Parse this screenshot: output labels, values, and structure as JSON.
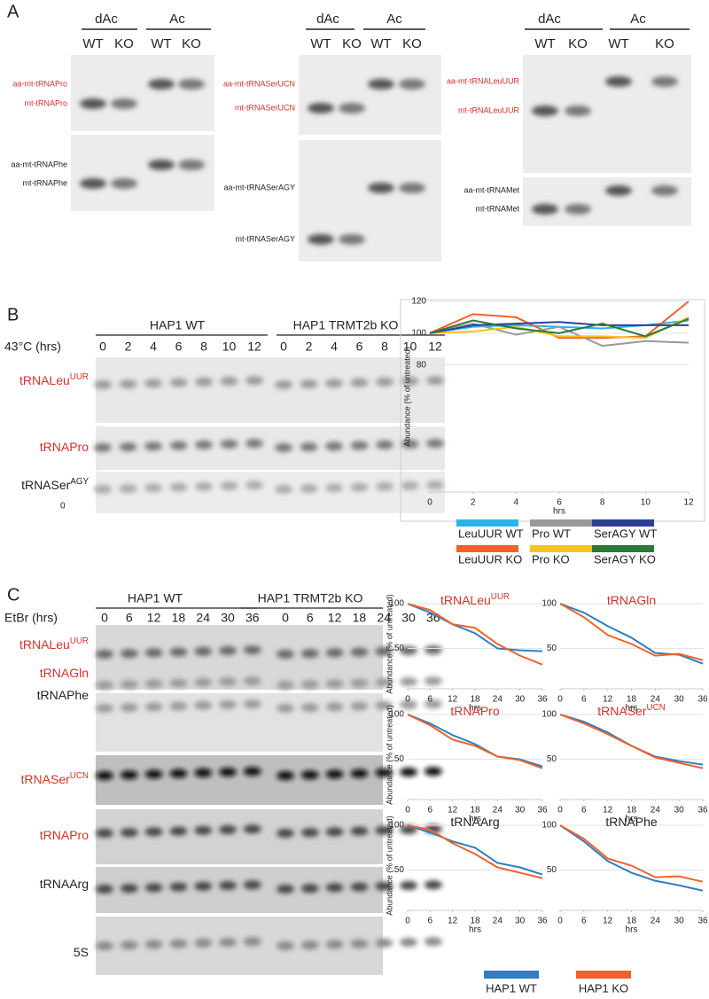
{
  "panel_a": {
    "label": "A",
    "blots": [
      {
        "groups": [
          "dAc",
          "Ac"
        ],
        "lanes": [
          "WT",
          "KO",
          "WT",
          "KO"
        ],
        "bands": [
          {
            "text": "aa-mt-tRNAPro",
            "color": "#d6312a"
          },
          {
            "text": "mt-tRNAPro",
            "color": "#d6312a"
          },
          {
            "text": "aa-mt-tRNAPhe",
            "color": "#222222"
          },
          {
            "text": "mt-tRNAPhe",
            "color": "#222222"
          }
        ]
      },
      {
        "groups": [
          "dAc",
          "Ac"
        ],
        "lanes": [
          "WT",
          "KO",
          "WT",
          "KO"
        ],
        "bands": [
          {
            "text": "aa-mt-tRNASerUCN",
            "color": "#d6312a"
          },
          {
            "text": "mt-tRNASerUCN",
            "color": "#d6312a"
          },
          {
            "text": "aa-mt-tRNASerAGY",
            "color": "#222222"
          },
          {
            "text": "mt-tRNASerAGY",
            "color": "#222222"
          }
        ]
      },
      {
        "groups": [
          "dAc",
          "Ac"
        ],
        "lanes": [
          "WT",
          "KO",
          "WT",
          "KO"
        ],
        "bands": [
          {
            "text": "aa-mt-tRNALeuUUR",
            "color": "#d6312a"
          },
          {
            "text": "mt-tRNALeuUUR",
            "color": "#d6312a"
          },
          {
            "text": "aa-mt-tRNAMet",
            "color": "#222222"
          },
          {
            "text": "mt-tRNAMet",
            "color": "#222222"
          }
        ]
      }
    ]
  },
  "panel_b": {
    "label": "B",
    "groups": [
      "HAP1 WT",
      "HAP1 TRMT2b KO"
    ],
    "time_title": "43°C (hrs)",
    "times": [
      0,
      2,
      4,
      6,
      8,
      10,
      12
    ],
    "note": "0",
    "rows": [
      {
        "text": "tRNALeu",
        "sup": "UUR",
        "color": "#d6312a"
      },
      {
        "text": "tRNAPro",
        "color": "#d6312a"
      },
      {
        "text": "tRNASer",
        "sup": "AGY",
        "color": "#222222"
      }
    ]
  },
  "panel_c": {
    "label": "C",
    "groups": [
      "HAP1 WT",
      "HAP1 TRMT2b KO"
    ],
    "time_title": "EtBr (hrs)",
    "times": [
      0,
      6,
      12,
      18,
      24,
      30,
      36
    ],
    "rows": [
      {
        "text": "tRNALeu",
        "sup": "UUR",
        "color": "#d6312a"
      },
      {
        "text": "tRNAGln",
        "color": "#d6312a"
      },
      {
        "text": "tRNAPhe",
        "color": "#222222"
      },
      {
        "text": "tRNASer",
        "sup": "UCN",
        "color": "#d6312a"
      },
      {
        "text": "tRNAPro",
        "color": "#d6312a"
      },
      {
        "text": "tRNAArg",
        "color": "#222222"
      },
      {
        "text": "5S",
        "color": "#222222"
      }
    ],
    "legend": [
      {
        "name": "HAP1 WT",
        "color": "#2f7fc1"
      },
      {
        "name": "HAP1 KO",
        "color": "#f0622a"
      }
    ]
  },
  "chart_data": [
    {
      "type": "line",
      "ylabel": "Abundance (% of untreated)",
      "xlabel": "hrs",
      "x": [
        0,
        2,
        4,
        6,
        8,
        10,
        12
      ],
      "xlim": [
        0,
        12
      ],
      "xticks": [
        0,
        2,
        4,
        6,
        8,
        10,
        12
      ],
      "ylim": [
        0,
        120
      ],
      "yticks": [
        80,
        100,
        120
      ],
      "grid": true,
      "series": [
        {
          "name": "LeuUUR WT",
          "color": "#29b5e8",
          "values": [
            100,
            104,
            105,
            104,
            103,
            105,
            108
          ]
        },
        {
          "name": "LeuUUR KO",
          "color": "#f0622a",
          "values": [
            100,
            112,
            110,
            97,
            97,
            98,
            120
          ]
        },
        {
          "name": "Pro WT",
          "color": "#999999",
          "values": [
            100,
            106,
            99,
            104,
            92,
            95,
            94
          ]
        },
        {
          "name": "Pro KO",
          "color": "#f5c518",
          "values": [
            100,
            101,
            104,
            98,
            98,
            97,
            110
          ]
        },
        {
          "name": "SerAGY WT",
          "color": "#2e3f96",
          "values": [
            100,
            105,
            106,
            107,
            105,
            105,
            105
          ]
        },
        {
          "name": "SerAGY KO",
          "color": "#2a7a3a",
          "values": [
            100,
            108,
            103,
            100,
            106,
            98,
            109
          ]
        }
      ]
    },
    {
      "type": "line",
      "title": "tRNALeu",
      "title_sup": "UUR",
      "title_color": "#d6312a",
      "ylabel": "Abundance (% of untreated)",
      "xlabel": "hrs",
      "x": [
        0,
        6,
        12,
        18,
        24,
        30,
        36
      ],
      "xlim": [
        0,
        36
      ],
      "xticks": [
        0,
        6,
        12,
        18,
        24,
        30,
        36
      ],
      "ylim": [
        5,
        105
      ],
      "yticks": [
        50,
        100
      ],
      "grid": true,
      "series": [
        {
          "color": "#2f7fc1",
          "values": [
            100,
            90,
            77,
            67,
            50,
            48,
            47
          ]
        },
        {
          "color": "#f0622a",
          "values": [
            100,
            93,
            77,
            73,
            55,
            42,
            32
          ]
        }
      ]
    },
    {
      "type": "line",
      "title": "tRNAGln",
      "title_color": "#d6312a",
      "xlabel": "hrs",
      "x": [
        0,
        6,
        12,
        18,
        24,
        30,
        36
      ],
      "xlim": [
        0,
        36
      ],
      "xticks": [
        0,
        6,
        12,
        18,
        24,
        30,
        36
      ],
      "ylim": [
        5,
        105
      ],
      "yticks": [
        50,
        100
      ],
      "grid": true,
      "series": [
        {
          "color": "#2f7fc1",
          "values": [
            100,
            90,
            75,
            62,
            45,
            43,
            33
          ]
        },
        {
          "color": "#f0622a",
          "values": [
            100,
            85,
            65,
            55,
            42,
            44,
            37
          ]
        }
      ]
    },
    {
      "type": "line",
      "title": "tRNAPro",
      "title_color": "#d6312a",
      "ylabel": "Abundance (% of untreated)",
      "xlabel": "hrs",
      "x": [
        0,
        6,
        12,
        18,
        24,
        30,
        36
      ],
      "xlim": [
        0,
        36
      ],
      "xticks": [
        0,
        6,
        12,
        18,
        24,
        30,
        36
      ],
      "ylim": [
        5,
        105
      ],
      "yticks": [
        50,
        100
      ],
      "grid": true,
      "series": [
        {
          "color": "#2f7fc1",
          "values": [
            100,
            90,
            77,
            67,
            53,
            50,
            42
          ]
        },
        {
          "color": "#f0622a",
          "values": [
            100,
            88,
            72,
            65,
            53,
            49,
            40
          ]
        }
      ]
    },
    {
      "type": "line",
      "title": "tRNASer",
      "title_sup": "UCN",
      "title_color": "#d6312a",
      "xlabel": "hrs",
      "x": [
        0,
        6,
        12,
        18,
        24,
        30,
        36
      ],
      "xlim": [
        0,
        36
      ],
      "xticks": [
        0,
        6,
        12,
        18,
        24,
        30,
        36
      ],
      "ylim": [
        5,
        105
      ],
      "yticks": [
        50,
        100
      ],
      "grid": true,
      "series": [
        {
          "color": "#2f7fc1",
          "values": [
            100,
            92,
            80,
            65,
            53,
            48,
            44
          ]
        },
        {
          "color": "#f0622a",
          "values": [
            100,
            90,
            78,
            65,
            52,
            46,
            40
          ]
        }
      ]
    },
    {
      "type": "line",
      "title": "tRNAArg",
      "title_color": "#222222",
      "ylabel": "Abundance (% of untreated)",
      "xlabel": "hrs",
      "x": [
        0,
        6,
        12,
        18,
        24,
        30,
        36
      ],
      "xlim": [
        0,
        36
      ],
      "xticks": [
        0,
        6,
        12,
        18,
        24,
        30,
        36
      ],
      "ylim": [
        5,
        105
      ],
      "yticks": [
        50,
        100
      ],
      "grid": true,
      "series": [
        {
          "color": "#2f7fc1",
          "values": [
            100,
            92,
            82,
            75,
            58,
            53,
            45
          ]
        },
        {
          "color": "#f0622a",
          "values": [
            100,
            95,
            80,
            68,
            53,
            47,
            41
          ]
        }
      ]
    },
    {
      "type": "line",
      "title": "tRNAPhe",
      "title_color": "#222222",
      "xlabel": "hrs",
      "x": [
        0,
        6,
        12,
        18,
        24,
        30,
        36
      ],
      "xlim": [
        0,
        36
      ],
      "xticks": [
        0,
        6,
        12,
        18,
        24,
        30,
        36
      ],
      "ylim": [
        5,
        105
      ],
      "yticks": [
        50,
        100
      ],
      "grid": true,
      "series": [
        {
          "color": "#2f7fc1",
          "values": [
            100,
            82,
            60,
            47,
            38,
            33,
            27
          ]
        },
        {
          "color": "#f0622a",
          "values": [
            100,
            85,
            63,
            55,
            42,
            43,
            37
          ]
        }
      ]
    }
  ]
}
